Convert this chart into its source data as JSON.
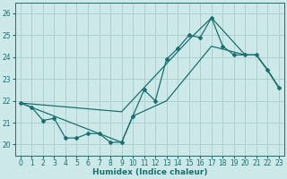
{
  "xlabel": "Humidex (Indice chaleur)",
  "bg_color": "#cce8e8",
  "grid_color": "#aacccc",
  "line_color": "#1a7070",
  "xlim": [
    -0.5,
    23.5
  ],
  "ylim": [
    19.5,
    26.5
  ],
  "yticks": [
    20,
    21,
    22,
    23,
    24,
    25,
    26
  ],
  "xticks": [
    0,
    1,
    2,
    3,
    4,
    5,
    6,
    7,
    8,
    9,
    10,
    11,
    12,
    13,
    14,
    15,
    16,
    17,
    18,
    19,
    20,
    21,
    22,
    23
  ],
  "series_jagged": [
    21.9,
    21.7,
    21.1,
    21.2,
    20.3,
    20.3,
    20.5,
    20.5,
    20.1,
    20.1,
    21.3,
    22.5,
    22.0,
    23.9,
    24.4,
    25.0,
    24.9,
    25.8,
    24.5,
    24.1,
    24.1,
    24.1,
    23.4,
    22.6
  ],
  "series_upper_x": [
    0,
    9,
    11,
    15,
    17,
    20,
    21,
    22,
    23
  ],
  "series_upper_y": [
    21.9,
    21.5,
    22.6,
    24.8,
    25.8,
    24.1,
    24.1,
    23.4,
    22.6
  ],
  "series_lower_x": [
    0,
    9,
    10,
    13,
    17,
    20,
    21,
    22,
    23
  ],
  "series_lower_y": [
    21.9,
    20.1,
    21.3,
    22.0,
    24.5,
    24.1,
    24.1,
    23.4,
    22.6
  ]
}
